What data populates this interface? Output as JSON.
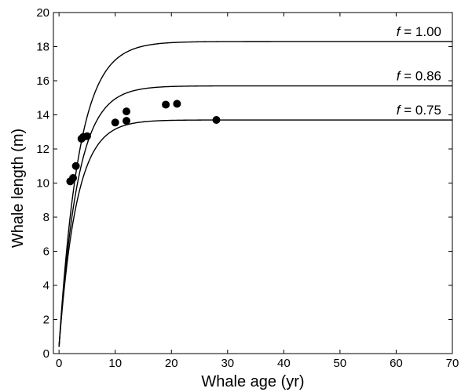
{
  "chart_data": {
    "type": "scatter",
    "title": "",
    "xlabel": "Whale age (yr)",
    "ylabel": "Whale length (m)",
    "xlim": [
      -1,
      70
    ],
    "ylim": [
      0,
      20
    ],
    "xticks": [
      0,
      10,
      20,
      30,
      40,
      50,
      60,
      70
    ],
    "yticks": [
      0,
      2,
      4,
      6,
      8,
      10,
      12,
      14,
      16,
      18,
      20
    ],
    "grid": false,
    "points": [
      {
        "x": 2,
        "y": 10.1
      },
      {
        "x": 2.5,
        "y": 10.3
      },
      {
        "x": 3,
        "y": 11.0
      },
      {
        "x": 4,
        "y": 12.6
      },
      {
        "x": 4.3,
        "y": 12.7
      },
      {
        "x": 5,
        "y": 12.75
      },
      {
        "x": 10,
        "y": 13.55
      },
      {
        "x": 12,
        "y": 14.2
      },
      {
        "x": 12,
        "y": 13.65
      },
      {
        "x": 19,
        "y": 14.6
      },
      {
        "x": 21,
        "y": 14.65
      },
      {
        "x": 28,
        "y": 13.7
      }
    ],
    "curves": [
      {
        "label_sym": "f",
        "label_eq": " = ",
        "label_val": "1.00",
        "asymptote": 18.3,
        "k": 0.28
      },
      {
        "label_sym": "f",
        "label_eq": " = ",
        "label_val": "0.86",
        "asymptote": 15.7,
        "k": 0.3
      },
      {
        "label_sym": "f",
        "label_eq": " = ",
        "label_val": "0.75",
        "asymptote": 13.7,
        "k": 0.32
      }
    ],
    "curve_model": {
      "l0": 0.4
    }
  }
}
